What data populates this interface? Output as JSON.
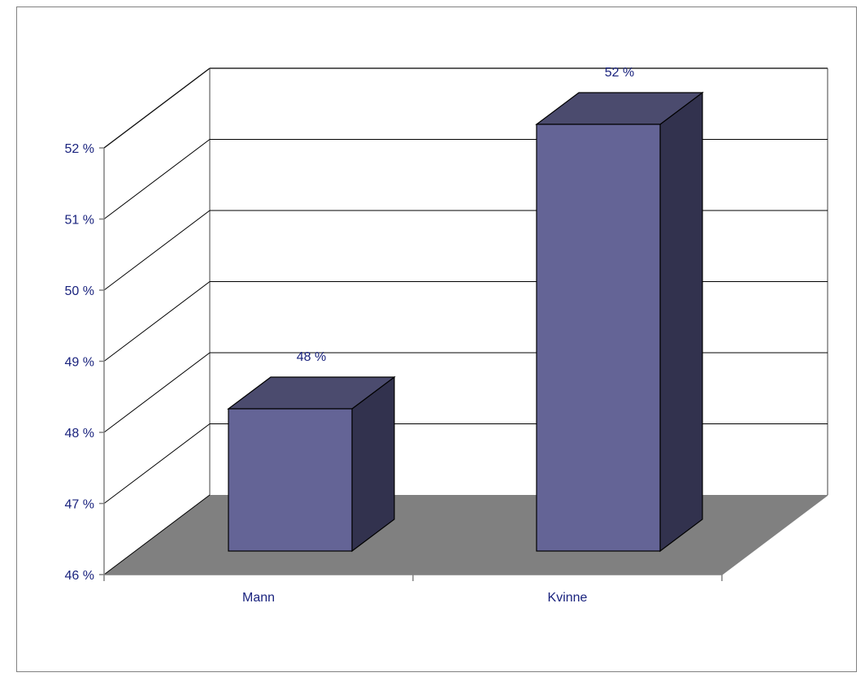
{
  "colors": {
    "bar_front": "#646496",
    "bar_top": "#4b4b6e",
    "bar_side": "#32324e",
    "floor": "#808080",
    "text": "#1a237e",
    "gridline": "#000000",
    "wall_edge": "#808080"
  },
  "chart_data": {
    "type": "bar",
    "title": "",
    "xlabel": "",
    "ylabel": "",
    "categories": [
      "Mann",
      "Kvinne"
    ],
    "values": [
      48,
      52
    ],
    "data_labels": [
      "48 %",
      "52 %"
    ],
    "ylim": [
      46,
      52
    ],
    "ytick_values": [
      46,
      47,
      48,
      49,
      50,
      51,
      52
    ],
    "ytick_labels": [
      "46 %",
      "47 %",
      "48 %",
      "49 %",
      "50 %",
      "51 %",
      "52 %"
    ],
    "style": "3d-column",
    "grid": true,
    "legend": "none"
  }
}
